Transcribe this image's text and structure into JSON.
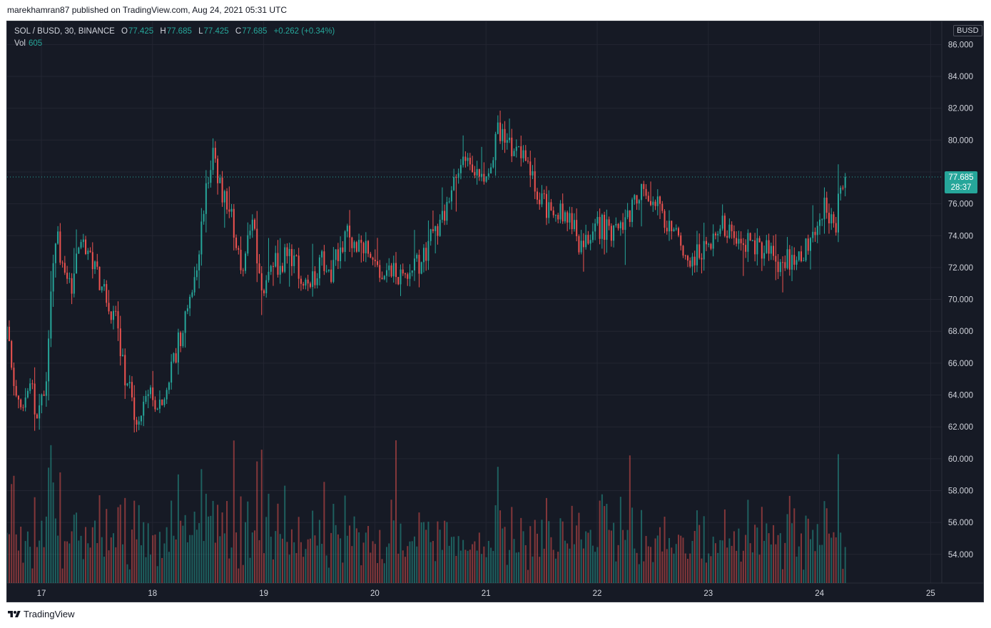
{
  "header": {
    "published_line": "marekhamran87 published on TradingView.com, Aug 24, 2021 05:31 UTC"
  },
  "legend": {
    "symbol": "SOL / BUSD, 30, BINANCE",
    "o_label": "O",
    "o_value": "77.425",
    "h_label": "H",
    "h_value": "77.685",
    "l_label": "L",
    "l_value": "77.425",
    "c_label": "C",
    "c_value": "77.685",
    "change": "+0.262 (+0.34%)",
    "vol_label": "Vol",
    "vol_value": "605"
  },
  "currency_badge": "BUSD",
  "price_badge": {
    "price": "77.685",
    "countdown": "28:37"
  },
  "footer": {
    "brand": "TradingView"
  },
  "colors": {
    "up": "#26a69a",
    "down": "#ef5350",
    "background": "#161a25",
    "grid": "#232632",
    "text": "#d1d4dc",
    "last_price_line": "#26a69a"
  },
  "chart_data": {
    "type": "candlestick",
    "symbol": "SOL / BUSD",
    "interval": "30",
    "exchange": "BINANCE",
    "y_ticks": [
      "54.000",
      "56.000",
      "58.000",
      "60.000",
      "62.000",
      "64.000",
      "66.000",
      "68.000",
      "70.000",
      "72.000",
      "74.000",
      "76.000",
      "78.000",
      "80.000",
      "82.000",
      "84.000",
      "86.000"
    ],
    "ylim": [
      52.2,
      87.0
    ],
    "x_ticks": [
      "17",
      "18",
      "19",
      "20",
      "21",
      "22",
      "23",
      "24",
      "25"
    ],
    "x_tick_positions_days": [
      0,
      1,
      2,
      3,
      4,
      5,
      6,
      7,
      8
    ],
    "last_price": 77.685,
    "series_start_day": -0.31,
    "interval_days": 0.0208333,
    "anchors": [
      {
        "d": -0.31,
        "p": 67.5
      },
      {
        "d": -0.25,
        "p": 65.3
      },
      {
        "d": -0.2,
        "p": 63.0
      },
      {
        "d": -0.1,
        "p": 64.6
      },
      {
        "d": -0.03,
        "p": 62.3
      },
      {
        "d": 0.05,
        "p": 65.2
      },
      {
        "d": 0.1,
        "p": 72.2
      },
      {
        "d": 0.14,
        "p": 73.8
      },
      {
        "d": 0.22,
        "p": 71.5
      },
      {
        "d": 0.28,
        "p": 70.4
      },
      {
        "d": 0.35,
        "p": 74.3
      },
      {
        "d": 0.42,
        "p": 73.2
      },
      {
        "d": 0.5,
        "p": 71.6
      },
      {
        "d": 0.6,
        "p": 69.6
      },
      {
        "d": 0.68,
        "p": 68.4
      },
      {
        "d": 0.74,
        "p": 65.5
      },
      {
        "d": 0.8,
        "p": 64.2
      },
      {
        "d": 0.86,
        "p": 61.2
      },
      {
        "d": 0.95,
        "p": 64.5
      },
      {
        "d": 1.05,
        "p": 63.6
      },
      {
        "d": 1.18,
        "p": 65.6
      },
      {
        "d": 1.3,
        "p": 69.2
      },
      {
        "d": 1.42,
        "p": 73.2
      },
      {
        "d": 1.5,
        "p": 77.5
      },
      {
        "d": 1.55,
        "p": 79.4
      },
      {
        "d": 1.6,
        "p": 77.0
      },
      {
        "d": 1.7,
        "p": 75.6
      },
      {
        "d": 1.8,
        "p": 72.0
      },
      {
        "d": 1.9,
        "p": 74.6
      },
      {
        "d": 2.0,
        "p": 70.0
      },
      {
        "d": 2.1,
        "p": 72.2
      },
      {
        "d": 2.25,
        "p": 72.8
      },
      {
        "d": 2.4,
        "p": 70.2
      },
      {
        "d": 2.5,
        "p": 72.5
      },
      {
        "d": 2.6,
        "p": 71.5
      },
      {
        "d": 2.75,
        "p": 74.2
      },
      {
        "d": 2.85,
        "p": 73.7
      },
      {
        "d": 3.0,
        "p": 72.0
      },
      {
        "d": 3.1,
        "p": 71.9
      },
      {
        "d": 3.3,
        "p": 71.3
      },
      {
        "d": 3.45,
        "p": 72.8
      },
      {
        "d": 3.65,
        "p": 76.0
      },
      {
        "d": 3.75,
        "p": 77.6
      },
      {
        "d": 3.85,
        "p": 79.0
      },
      {
        "d": 4.0,
        "p": 77.0
      },
      {
        "d": 4.1,
        "p": 80.7
      },
      {
        "d": 4.2,
        "p": 79.4
      },
      {
        "d": 4.3,
        "p": 79.8
      },
      {
        "d": 4.45,
        "p": 76.7
      },
      {
        "d": 4.55,
        "p": 75.8
      },
      {
        "d": 4.7,
        "p": 75.5
      },
      {
        "d": 4.85,
        "p": 73.5
      },
      {
        "d": 5.0,
        "p": 74.6
      },
      {
        "d": 5.15,
        "p": 74.3
      },
      {
        "d": 5.3,
        "p": 75.2
      },
      {
        "d": 5.4,
        "p": 77.2
      },
      {
        "d": 5.5,
        "p": 76.3
      },
      {
        "d": 5.6,
        "p": 75.2
      },
      {
        "d": 5.75,
        "p": 73.5
      },
      {
        "d": 5.85,
        "p": 72.6
      },
      {
        "d": 6.0,
        "p": 73.5
      },
      {
        "d": 6.1,
        "p": 75.0
      },
      {
        "d": 6.2,
        "p": 74.2
      },
      {
        "d": 6.4,
        "p": 73.2
      },
      {
        "d": 6.55,
        "p": 73.0
      },
      {
        "d": 6.65,
        "p": 72.2
      },
      {
        "d": 6.8,
        "p": 72.8
      },
      {
        "d": 6.9,
        "p": 73.2
      },
      {
        "d": 7.0,
        "p": 75.8
      },
      {
        "d": 7.1,
        "p": 75.4
      },
      {
        "d": 7.15,
        "p": 74.5
      },
      {
        "d": 7.18,
        "p": 77.6
      },
      {
        "d": 7.22,
        "p": 77.45
      },
      {
        "d": 7.24,
        "p": 77.685
      }
    ]
  }
}
